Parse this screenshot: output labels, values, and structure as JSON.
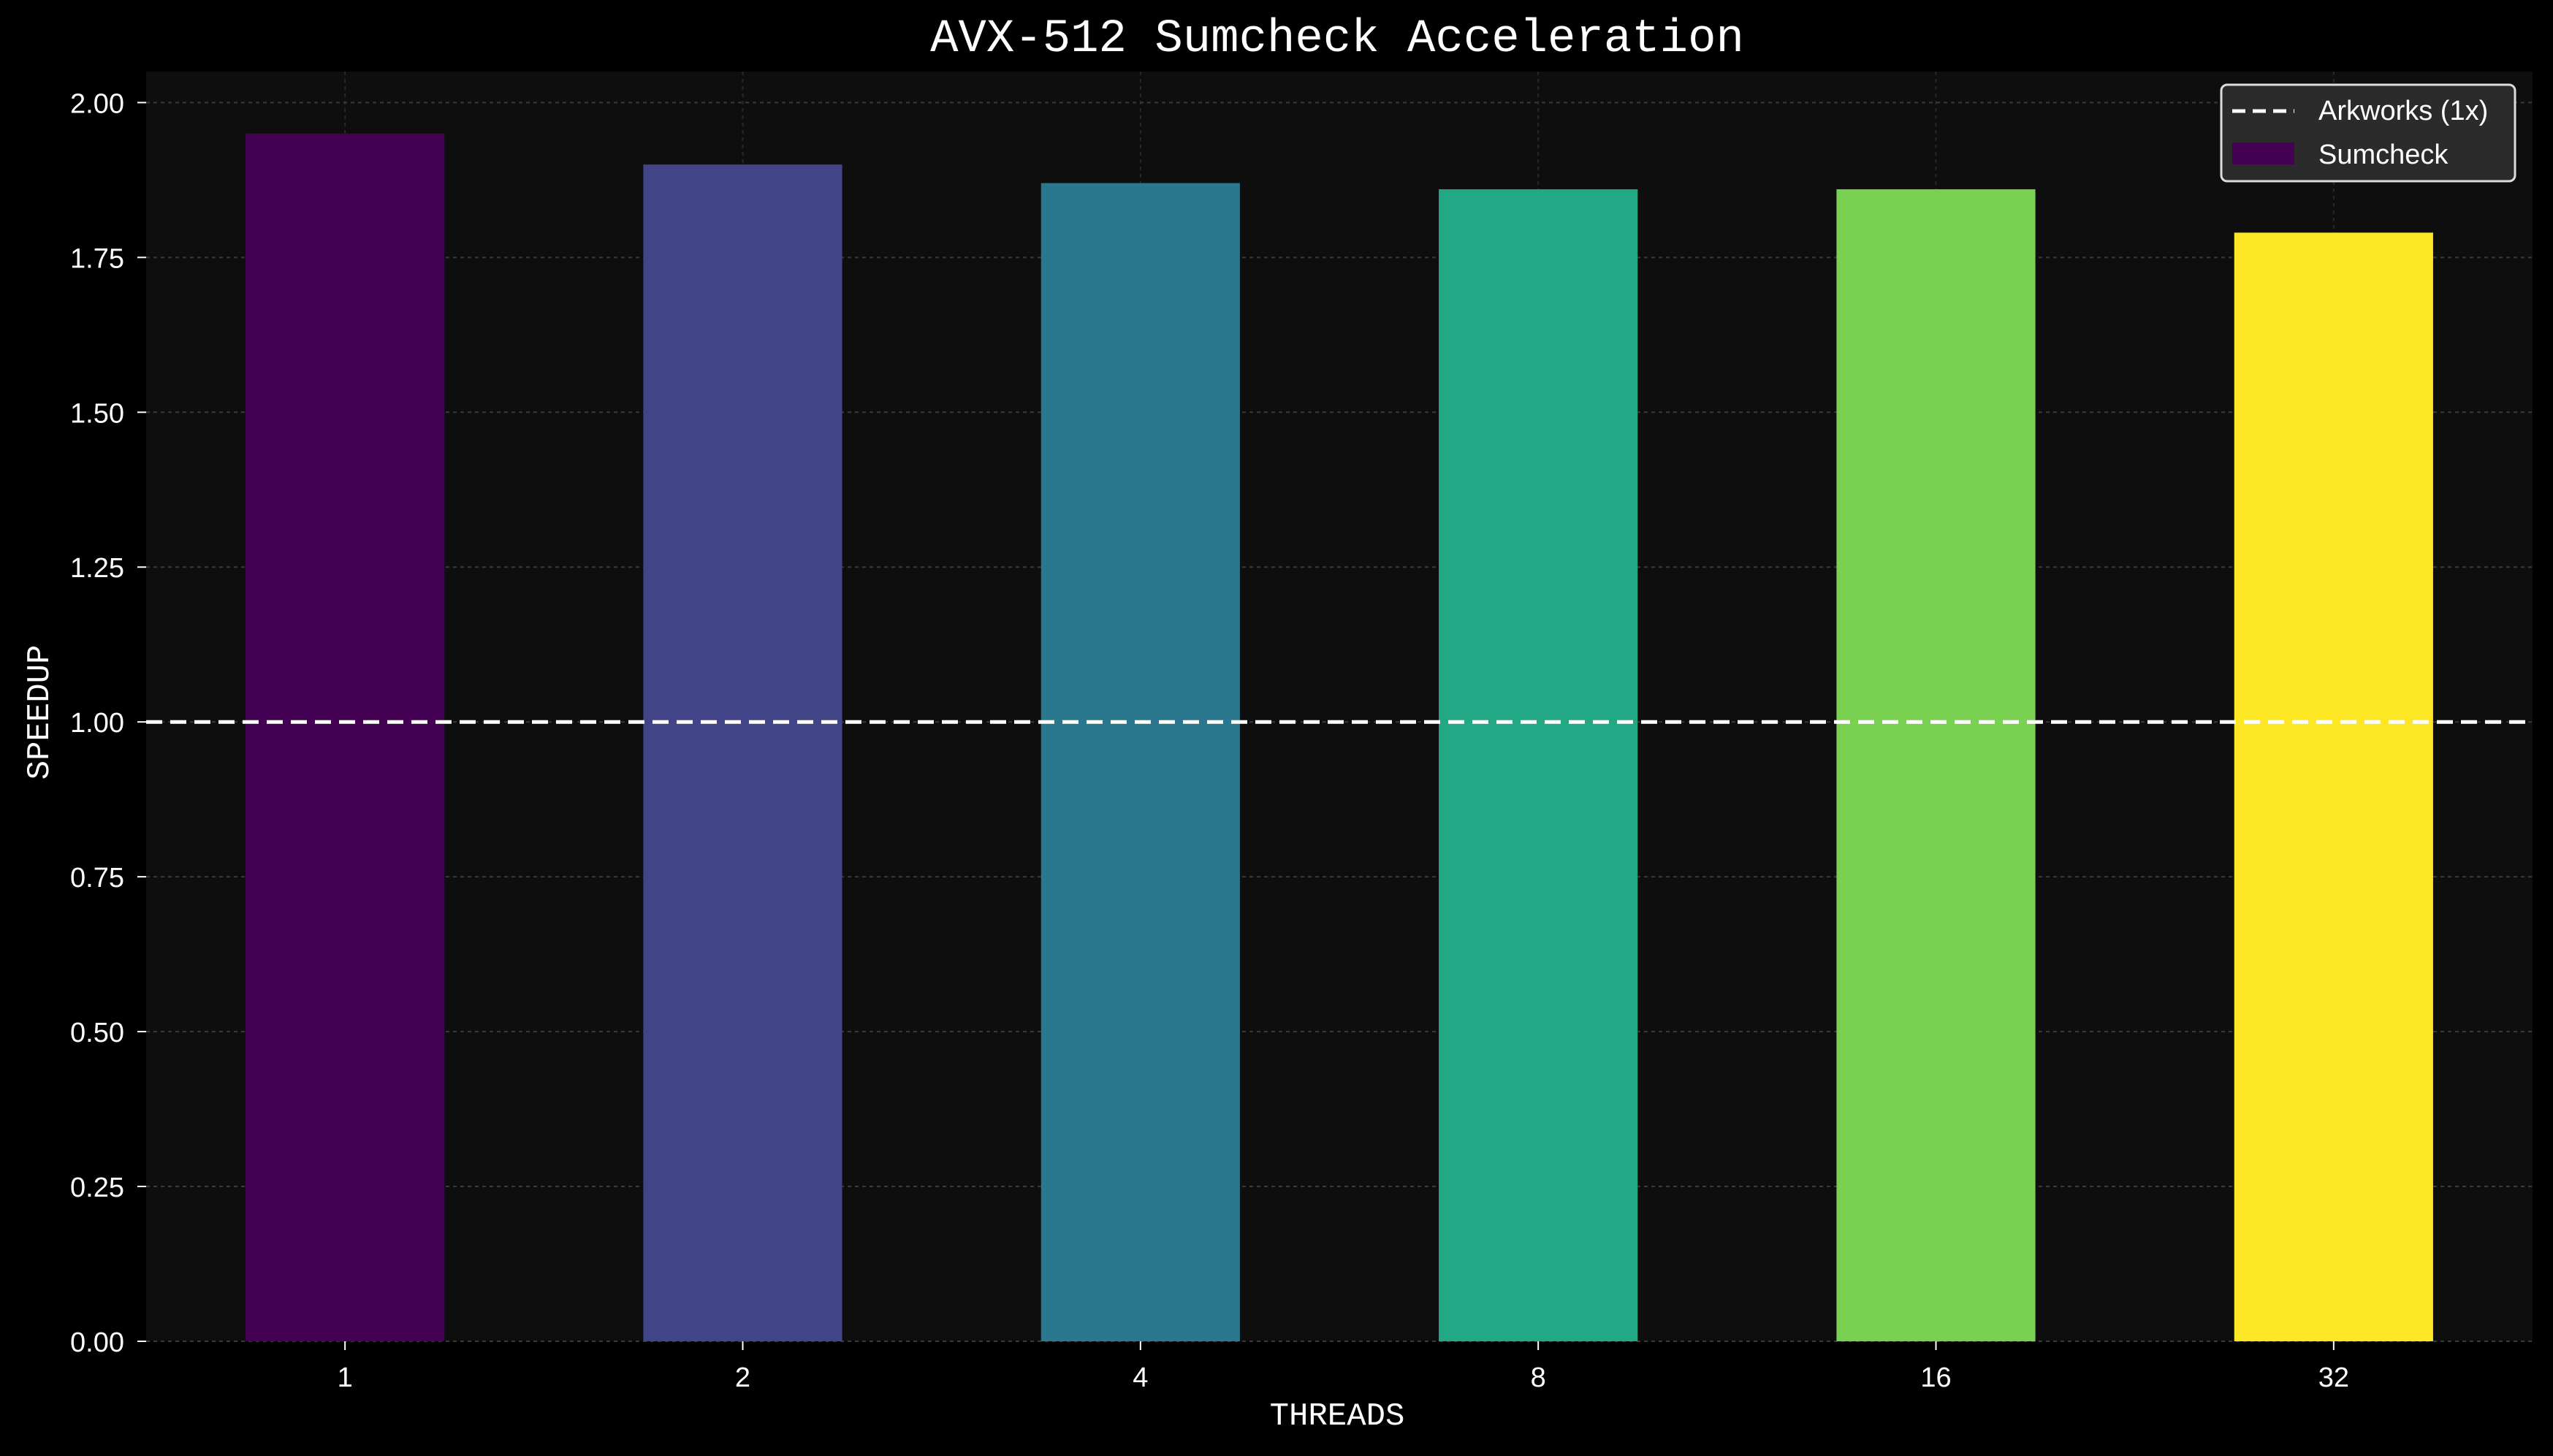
{
  "chart_data": {
    "type": "bar",
    "title": "AVX-512 Sumcheck Acceleration",
    "xlabel": "THREADS",
    "ylabel": "SPEEDUP",
    "categories": [
      "1",
      "2",
      "4",
      "8",
      "16",
      "32"
    ],
    "series": [
      {
        "name": "Sumcheck",
        "values": [
          1.95,
          1.9,
          1.87,
          1.86,
          1.86,
          1.79
        ],
        "colors": [
          "#440154",
          "#414487",
          "#2a788e",
          "#22a884",
          "#7ad151",
          "#fde725"
        ]
      }
    ],
    "reference_line": {
      "name": "Arkworks (1x)",
      "value": 1.0,
      "style": "dashed",
      "color": "#ffffff"
    },
    "ylim": [
      0,
      2.05
    ],
    "yticks": [
      "0.00",
      "0.25",
      "0.50",
      "0.75",
      "1.00",
      "1.25",
      "1.50",
      "1.75",
      "2.00"
    ],
    "grid": true,
    "legend_position": "top-right",
    "colors": {
      "figure_background": "#000000",
      "plot_background": "#0e0e0e",
      "text": "#ffffff",
      "grid": "#3a3a3a",
      "legend_background": "#2b2b2b"
    }
  }
}
